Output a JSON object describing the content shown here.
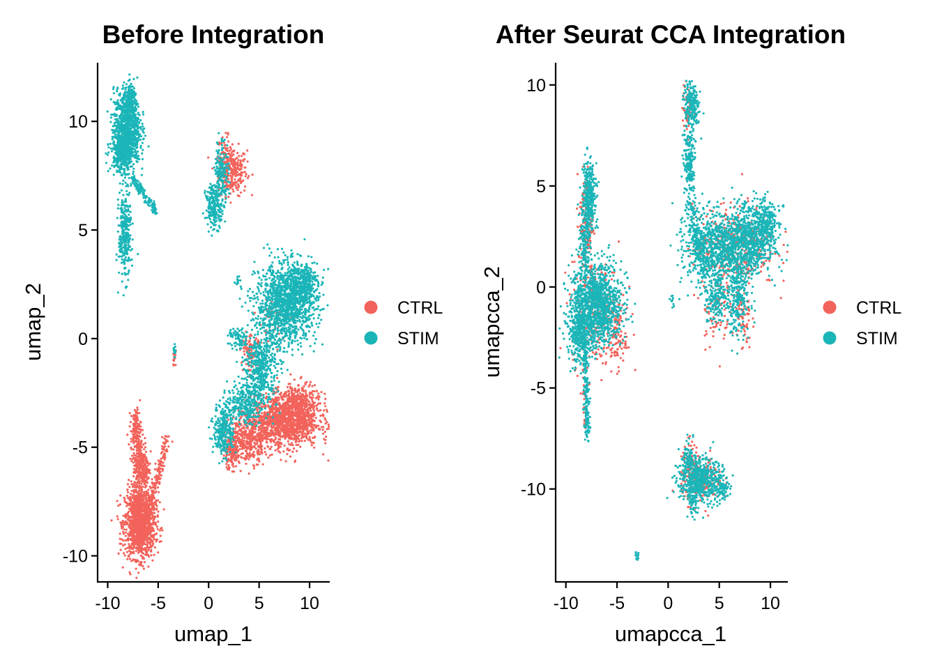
{
  "colors": {
    "CTRL": "#F2635B",
    "STIM": "#1BB5B8"
  },
  "chart_data": [
    {
      "type": "scatter",
      "title": "Before Integration",
      "xlabel": "umap_1",
      "ylabel": "umap_2",
      "xlim": [
        -11,
        12
      ],
      "ylim": [
        -11.2,
        12.7
      ],
      "xticks": [
        -10,
        -5,
        0,
        5,
        10
      ],
      "yticks": [
        -10,
        -5,
        0,
        5,
        10
      ],
      "grid": false,
      "legend": {
        "position": "right",
        "entries": [
          "CTRL",
          "STIM"
        ]
      },
      "series": [
        {
          "name": "CTRL",
          "values": [],
          "clusters": [
            {
              "cx": 2.4,
              "cy": 7.7,
              "sx": 0.7,
              "sy": 0.55,
              "n": 260
            },
            {
              "cx": 1.6,
              "cy": 8.3,
              "sx": 0.35,
              "sy": 0.5,
              "n": 60
            },
            {
              "cx": -6.8,
              "cy": -8.5,
              "sx": 0.75,
              "sy": 0.8,
              "n": 1300
            },
            {
              "cx": -6.7,
              "cy": -5.9,
              "sx": 0.4,
              "sy": 0.7,
              "n": 300
            },
            {
              "cx": -7.2,
              "cy": -4.2,
              "sx": 0.25,
              "sy": 0.5,
              "n": 140
            },
            {
              "cx": 7.5,
              "cy": -3.8,
              "sx": 1.7,
              "sy": 0.6,
              "n": 1300
            },
            {
              "cx": 9.0,
              "cy": -3.0,
              "sx": 1.0,
              "sy": 0.45,
              "n": 300
            },
            {
              "cx": 3.8,
              "cy": -4.6,
              "sx": 1.0,
              "sy": 0.55,
              "n": 380
            },
            {
              "cx": 2.2,
              "cy": -5.3,
              "sx": 0.4,
              "sy": 0.35,
              "n": 120
            },
            {
              "cx": 4.2,
              "cy": -0.6,
              "sx": 0.5,
              "sy": 0.35,
              "n": 100
            },
            {
              "cx": -3.4,
              "cy": -0.9,
              "sx": 0.1,
              "sy": 0.2,
              "n": 15
            },
            {
              "cx": 6.5,
              "cy": 0.8,
              "sx": 0.8,
              "sy": 0.5,
              "n": 50
            }
          ],
          "lines": [
            {
              "x0": -5.9,
              "y0": -8.0,
              "x1": -4.0,
              "y1": -4.5,
              "w": 0.18,
              "n": 150
            }
          ]
        },
        {
          "name": "STIM",
          "values": [],
          "clusters": [
            {
              "cx": -8.1,
              "cy": 9.7,
              "sx": 0.65,
              "sy": 0.85,
              "n": 900
            },
            {
              "cx": -7.7,
              "cy": 11.0,
              "sx": 0.35,
              "sy": 0.35,
              "n": 120
            },
            {
              "cx": -8.5,
              "cy": 8.6,
              "sx": 0.6,
              "sy": 0.45,
              "n": 350
            },
            {
              "cx": -8.3,
              "cy": 4.8,
              "sx": 0.3,
              "sy": 1.0,
              "n": 300
            },
            {
              "cx": 0.6,
              "cy": 6.1,
              "sx": 0.45,
              "sy": 0.5,
              "n": 220
            },
            {
              "cx": 1.3,
              "cy": 7.8,
              "sx": 0.35,
              "sy": 0.7,
              "n": 150
            },
            {
              "cx": 7.7,
              "cy": 1.6,
              "sx": 1.5,
              "sy": 0.9,
              "n": 1300
            },
            {
              "cx": 9.2,
              "cy": 2.6,
              "sx": 0.8,
              "sy": 0.5,
              "n": 300
            },
            {
              "cx": 5.2,
              "cy": -1.4,
              "sx": 0.8,
              "sy": 0.9,
              "n": 500
            },
            {
              "cx": 3.5,
              "cy": -3.0,
              "sx": 0.8,
              "sy": 0.45,
              "n": 250
            },
            {
              "cx": 1.5,
              "cy": -4.2,
              "sx": 0.5,
              "sy": 0.6,
              "n": 280
            },
            {
              "cx": 3.0,
              "cy": 0.0,
              "sx": 0.5,
              "sy": 0.25,
              "n": 70
            },
            {
              "cx": -3.4,
              "cy": -0.6,
              "sx": 0.08,
              "sy": 0.2,
              "n": 12
            },
            {
              "cx": 2.8,
              "cy": 2.6,
              "sx": 0.15,
              "sy": 0.12,
              "n": 10
            }
          ],
          "lines": [
            {
              "x0": -7.6,
              "y0": 7.4,
              "x1": -5.3,
              "y1": 5.9,
              "w": 0.12,
              "n": 140
            }
          ]
        }
      ]
    },
    {
      "type": "scatter",
      "title": "After Seurat CCA Integration",
      "xlabel": "umapcca_1",
      "ylabel": "umapcca_2",
      "xlim": [
        -11,
        11.7
      ],
      "ylim": [
        -14.6,
        11.1
      ],
      "xticks": [
        -10,
        -5,
        0,
        5,
        10
      ],
      "yticks": [
        -10,
        -5,
        0,
        5,
        10
      ],
      "grid": false,
      "legend": {
        "position": "right",
        "entries": [
          "CTRL",
          "STIM"
        ]
      },
      "series": [
        {
          "name": "CTRL",
          "values": [],
          "clusters": [
            {
              "cx": -8.0,
              "cy": 3.2,
              "sx": 0.35,
              "sy": 1.3,
              "n": 140
            },
            {
              "cx": -6.9,
              "cy": -1.3,
              "sx": 1.3,
              "sy": 1.3,
              "n": 300
            },
            {
              "cx": -5.1,
              "cy": -2.5,
              "sx": 0.5,
              "sy": 0.8,
              "n": 80
            },
            {
              "cx": 1.9,
              "cy": 8.8,
              "sx": 0.25,
              "sy": 0.6,
              "n": 40
            },
            {
              "cx": 6.5,
              "cy": 2.0,
              "sx": 2.0,
              "sy": 1.0,
              "n": 350
            },
            {
              "cx": 4.6,
              "cy": -1.2,
              "sx": 0.7,
              "sy": 0.9,
              "n": 70
            },
            {
              "cx": 7.3,
              "cy": -1.5,
              "sx": 0.4,
              "sy": 0.8,
              "n": 60
            },
            {
              "cx": 3.3,
              "cy": -9.6,
              "sx": 1.0,
              "sy": 0.55,
              "n": 170
            },
            {
              "cx": 2.3,
              "cy": -8.7,
              "sx": 0.5,
              "sy": 0.5,
              "n": 50
            }
          ],
          "lines": [
            {
              "x0": -8.3,
              "y0": -3.5,
              "x1": -8.1,
              "y1": -7.4,
              "w": 0.12,
              "n": 25
            }
          ]
        },
        {
          "name": "STIM",
          "values": [],
          "clusters": [
            {
              "cx": -7.7,
              "cy": 4.6,
              "sx": 0.3,
              "sy": 0.8,
              "n": 300
            },
            {
              "cx": -8.1,
              "cy": 2.1,
              "sx": 0.25,
              "sy": 1.0,
              "n": 160
            },
            {
              "cx": -7.0,
              "cy": -0.9,
              "sx": 1.2,
              "sy": 1.0,
              "n": 1300
            },
            {
              "cx": -8.6,
              "cy": -2.3,
              "sx": 0.6,
              "sy": 0.7,
              "n": 300
            },
            {
              "cx": 2.3,
              "cy": 8.9,
              "sx": 0.35,
              "sy": 0.55,
              "n": 200
            },
            {
              "cx": 2.1,
              "cy": 6.2,
              "sx": 0.3,
              "sy": 0.9,
              "n": 200
            },
            {
              "cx": 4.5,
              "cy": 1.9,
              "sx": 1.5,
              "sy": 0.9,
              "n": 800
            },
            {
              "cx": 8.0,
              "cy": 2.4,
              "sx": 1.3,
              "sy": 0.8,
              "n": 800
            },
            {
              "cx": 9.6,
              "cy": 3.4,
              "sx": 0.5,
              "sy": 0.5,
              "n": 150
            },
            {
              "cx": 6.7,
              "cy": -0.5,
              "sx": 0.6,
              "sy": 1.0,
              "n": 260
            },
            {
              "cx": 4.7,
              "cy": -0.6,
              "sx": 0.5,
              "sy": 0.6,
              "n": 150
            },
            {
              "cx": 3.0,
              "cy": -9.5,
              "sx": 1.0,
              "sy": 0.55,
              "n": 550
            },
            {
              "cx": 2.0,
              "cy": -8.4,
              "sx": 0.35,
              "sy": 0.4,
              "n": 60
            },
            {
              "cx": 5.3,
              "cy": -9.9,
              "sx": 0.45,
              "sy": 0.3,
              "n": 80
            },
            {
              "cx": 2.6,
              "cy": -10.8,
              "sx": 0.3,
              "sy": 0.3,
              "n": 40
            },
            {
              "cx": -3.0,
              "cy": -13.3,
              "sx": 0.1,
              "sy": 0.1,
              "n": 12
            },
            {
              "cx": 0.3,
              "cy": -0.7,
              "sx": 0.12,
              "sy": 0.15,
              "n": 10
            }
          ],
          "lines": [
            {
              "x0": -8.1,
              "y0": -3.3,
              "x1": -7.9,
              "y1": -7.5,
              "w": 0.12,
              "n": 160
            },
            {
              "x0": 2.0,
              "y0": 4.0,
              "x1": 3.5,
              "y1": 1.0,
              "w": 0.25,
              "n": 120
            }
          ]
        }
      ]
    }
  ]
}
